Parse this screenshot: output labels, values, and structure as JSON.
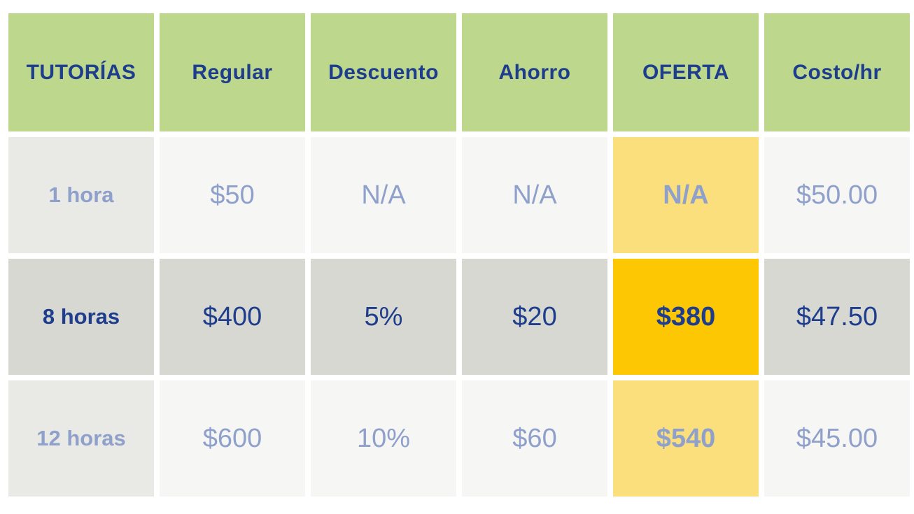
{
  "chart_data": {
    "type": "table",
    "columns": [
      "TUTORÍAS",
      "Regular",
      "Descuento",
      "Ahorro",
      "OFERTA",
      "Costo/hr"
    ],
    "rows": [
      [
        "1 hora",
        "$50",
        "N/A",
        "N/A",
        "N/A",
        "$50.00"
      ],
      [
        "8 horas",
        "$400",
        "5%",
        "$20",
        "$380",
        "$47.50"
      ],
      [
        "12 horas",
        "$600",
        "10%",
        "$60",
        "$540",
        "$45.00"
      ]
    ],
    "highlight_column": "OFERTA",
    "emphasized_row": "8 horas",
    "legend_position": "none",
    "grid": false
  },
  "colors": {
    "header_bg": "#bdd78c",
    "header_text": "#1e3d8c",
    "strong_text": "#1e3d8c",
    "muted_text": "#8fa0cb",
    "offer_strong_bg": "#fec703",
    "offer_muted_bg": "#fbdf7d",
    "muted_label_bg": "#e9e9e6",
    "muted_cell_bg": "#f6f6f4",
    "strong_cell_bg": "#d8d8d3",
    "page_bg": "#ffffff"
  }
}
